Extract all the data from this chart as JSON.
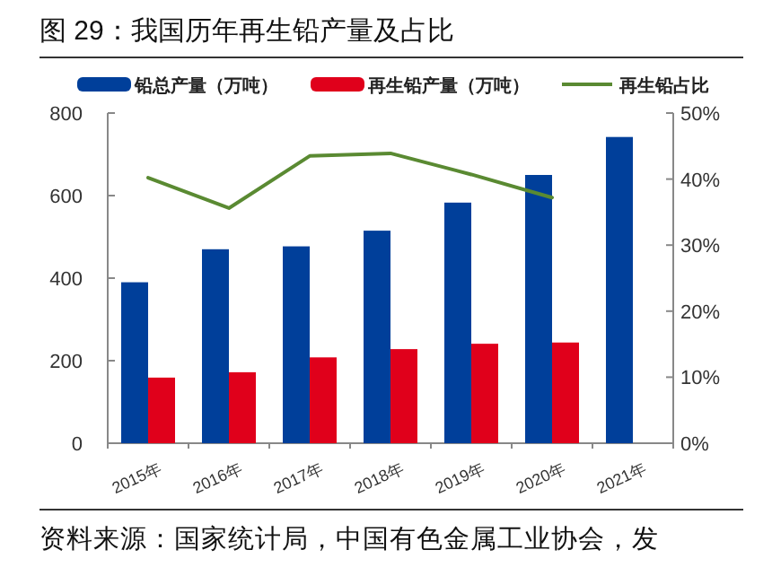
{
  "chart_data": {
    "type": "bar",
    "title": "图 29：我国历年再生铅产量及占比",
    "categories": [
      "2015年",
      "2016年",
      "2017年",
      "2018年",
      "2019年",
      "2020年",
      "2021年"
    ],
    "series": [
      {
        "name": "铅总产量（万吨）",
        "color": "#003f9a",
        "values": [
          390,
          470,
          477,
          515,
          583,
          650,
          742
        ]
      },
      {
        "name": "再生铅产量（万吨）",
        "color": "#e0001b",
        "values": [
          159,
          172,
          208,
          228,
          241,
          244,
          null
        ]
      },
      {
        "name": "再生铅占比",
        "type": "line",
        "axis": "y2",
        "color": "#5a8a32",
        "values": [
          40.2,
          35.6,
          43.5,
          43.9,
          40.7,
          37.2,
          null
        ]
      }
    ],
    "ylim": [
      0,
      800
    ],
    "yticks": [
      0,
      200,
      400,
      600,
      800
    ],
    "y2lim": [
      0,
      50
    ],
    "y2ticks": [
      {
        "value": 0,
        "label": "0%"
      },
      {
        "value": 10,
        "label": "10%"
      },
      {
        "value": 20,
        "label": "20%"
      },
      {
        "value": 30,
        "label": "30%"
      },
      {
        "value": 40,
        "label": "40%"
      },
      {
        "value": 50,
        "label": "50%"
      }
    ],
    "legend": "top",
    "grid": false,
    "annotations": [
      "资料来源：国家统计局，中国有色金属工业协会，发"
    ]
  }
}
